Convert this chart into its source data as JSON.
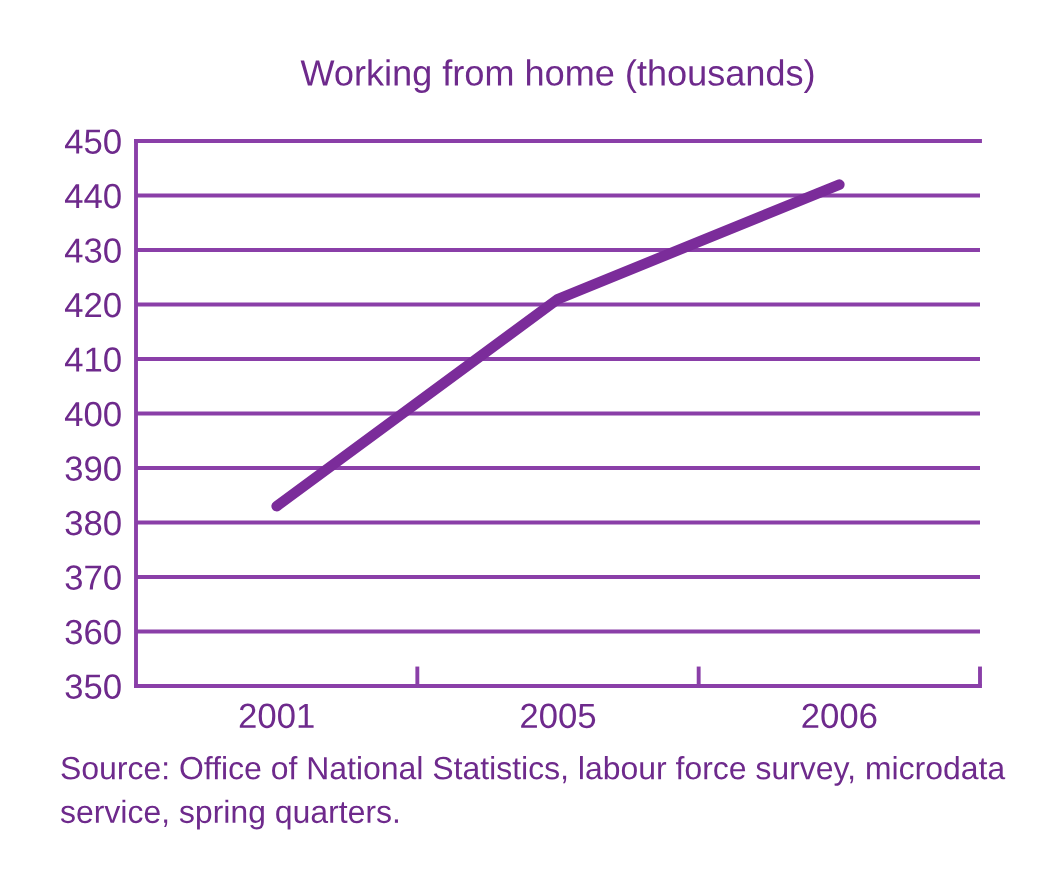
{
  "chart_data": {
    "type": "line",
    "title": "Working from home (thousands)",
    "categories": [
      "2001",
      "2005",
      "2006"
    ],
    "series": [
      {
        "color": "#7b2c9a",
        "values": [
          383,
          421,
          442
        ]
      }
    ],
    "ylim": [
      350,
      450
    ],
    "yticks": [
      350,
      360,
      370,
      380,
      390,
      400,
      410,
      420,
      430,
      440,
      450
    ],
    "grid": "y",
    "line_style": "solid",
    "annotations": [
      "Source: Office of National Statistics, labour force survey, microdata service, spring quarters."
    ]
  }
}
